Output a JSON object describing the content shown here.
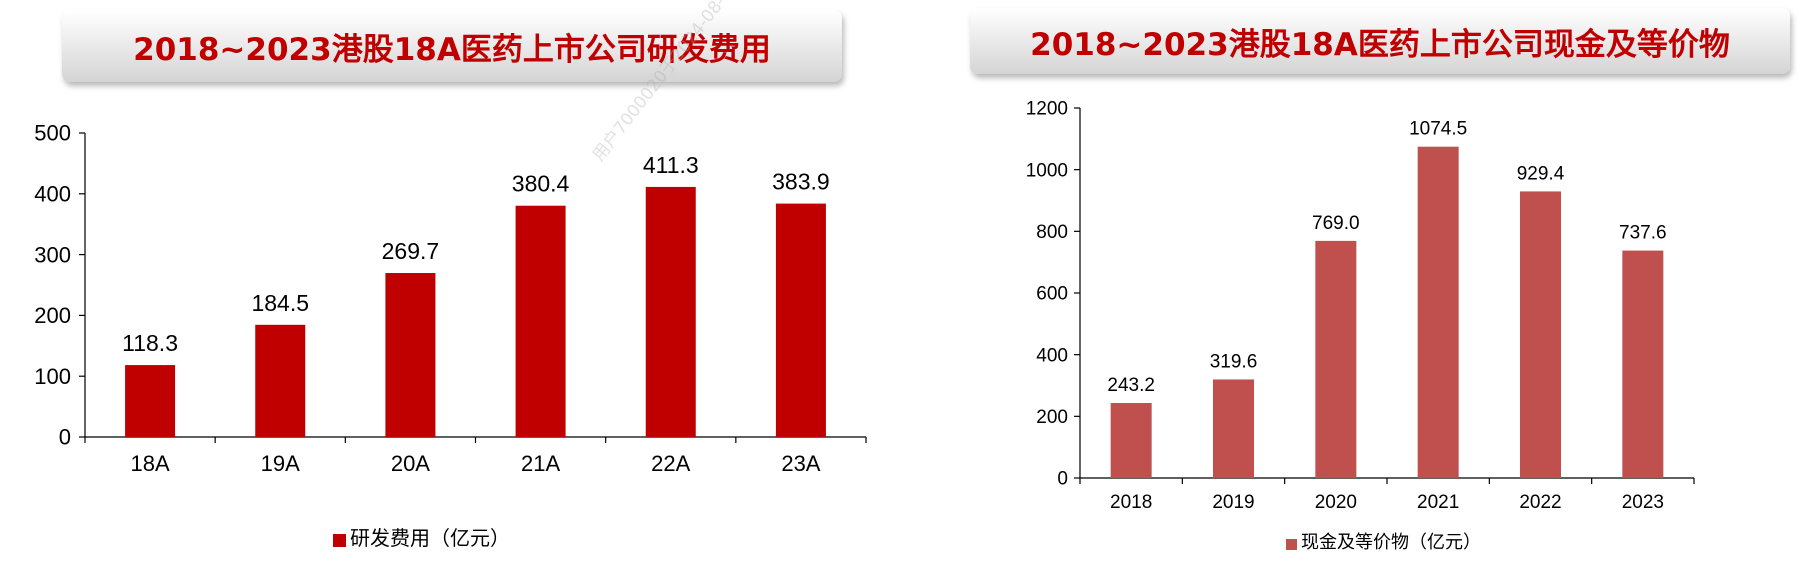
{
  "titles": {
    "left": "2018~2023港股18A医药上市公司研发费用",
    "right": "2018~2023港股18A医药上市公司现金及等价物"
  },
  "watermark": "用户7000020于2024-08-06日下载，",
  "colors": {
    "title_text": "#c00000",
    "left_bar": "#c00000",
    "right_bar": "#c0504d"
  },
  "chart_data": [
    {
      "type": "bar",
      "title": "2018~2023港股18A医药上市公司研发费用",
      "categories": [
        "18A",
        "19A",
        "20A",
        "21A",
        "22A",
        "23A"
      ],
      "series": [
        {
          "name": "研发费用（亿元）",
          "values": [
            118.3,
            184.5,
            269.7,
            380.4,
            411.3,
            383.9
          ]
        }
      ],
      "value_labels": [
        "118.3",
        "184.5",
        "269.7",
        "380.4",
        "411.3",
        "383.9"
      ],
      "ylim": [
        0,
        500
      ],
      "yticks": [
        "0",
        "100",
        "200",
        "300",
        "400",
        "500"
      ],
      "grid": false,
      "legend_position": "bottom"
    },
    {
      "type": "bar",
      "title": "2018~2023港股18A医药上市公司现金及等价物",
      "categories": [
        "2018",
        "2019",
        "2020",
        "2021",
        "2022",
        "2023"
      ],
      "series": [
        {
          "name": "现金及等价物（亿元）",
          "values": [
            243.2,
            319.6,
            769.0,
            1074.5,
            929.4,
            737.6
          ]
        }
      ],
      "value_labels": [
        "243.2",
        "319.6",
        "769.0",
        "1074.5",
        "929.4",
        "737.6"
      ],
      "ylim": [
        0,
        1200
      ],
      "yticks": [
        "0",
        "200",
        "400",
        "600",
        "800",
        "1000",
        "1200"
      ],
      "grid": false,
      "legend_position": "bottom"
    }
  ]
}
